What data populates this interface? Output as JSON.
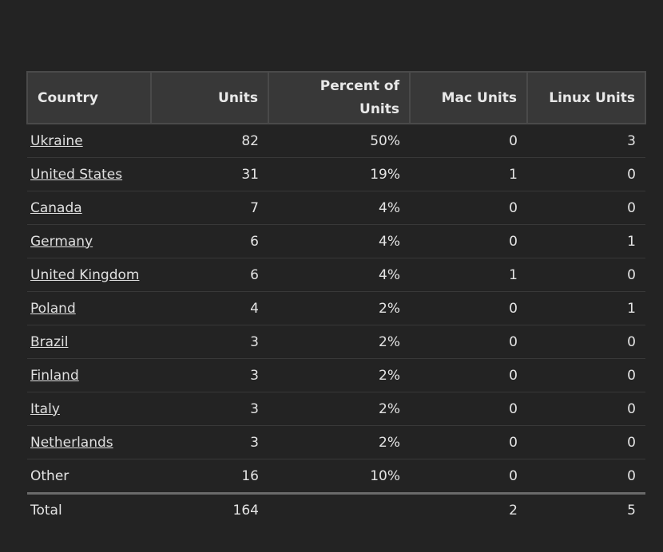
{
  "table": {
    "columns": [
      "Country",
      "Units",
      "Percent of Units",
      "Mac Units",
      "Linux Units"
    ],
    "rows": [
      [
        "Ukraine",
        82,
        "50%",
        0,
        3
      ],
      [
        "United States",
        31,
        "19%",
        1,
        0
      ],
      [
        "Canada",
        7,
        "4%",
        0,
        0
      ],
      [
        "Germany",
        6,
        "4%",
        0,
        1
      ],
      [
        "United Kingdom",
        6,
        "4%",
        1,
        0
      ],
      [
        "Poland",
        4,
        "2%",
        0,
        1
      ],
      [
        "Brazil",
        3,
        "2%",
        0,
        0
      ],
      [
        "Finland",
        3,
        "2%",
        0,
        0
      ],
      [
        "Italy",
        3,
        "2%",
        0,
        0
      ],
      [
        "Netherlands",
        3,
        "2%",
        0,
        0
      ],
      [
        "Other",
        16,
        "10%",
        0,
        0
      ]
    ],
    "linked_rows": 10,
    "total": {
      "label": "Total",
      "units": 164,
      "mac": 2,
      "linux": 5
    }
  }
}
